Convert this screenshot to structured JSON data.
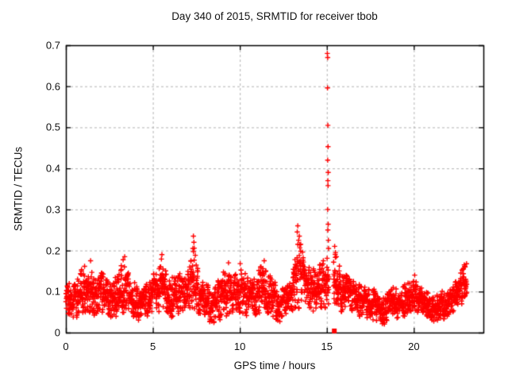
{
  "chart_data": {
    "type": "scatter",
    "title": "Day 340 of 2015, SRMTID for receiver tbob",
    "xlabel": "GPS time / hours",
    "ylabel": "SRMTID / TECUs",
    "xlim": [
      0,
      24
    ],
    "ylim": [
      0,
      0.7
    ],
    "xticks": {
      "values": [
        0,
        5,
        10,
        15,
        20
      ],
      "labels": [
        "0",
        "5",
        "10",
        "15",
        "20"
      ]
    },
    "yticks": {
      "values": [
        0,
        0.1,
        0.2,
        0.3,
        0.4,
        0.5,
        0.6,
        0.7
      ],
      "labels": [
        "0",
        "0.1",
        "0.2",
        "0.3",
        "0.4",
        "0.5",
        "0.6",
        "0.7"
      ]
    },
    "grid": true,
    "legend": "none",
    "marker": "plus",
    "marker_color": "#ff0000",
    "grid_color": "#b3b3b3",
    "border_color": "#000000",
    "sample_step_hours": 0.008333,
    "series_span_hours": [
      0.0,
      23.05
    ],
    "gaps": [
      [
        15.13,
        15.38
      ]
    ],
    "seed": 340,
    "envelope": [
      {
        "t": 0.0,
        "lo": 0.05,
        "hi": 0.13
      },
      {
        "t": 0.4,
        "lo": 0.03,
        "hi": 0.11
      },
      {
        "t": 0.7,
        "lo": 0.04,
        "hi": 0.14
      },
      {
        "t": 1.0,
        "lo": 0.05,
        "hi": 0.16
      },
      {
        "t": 1.4,
        "lo": 0.05,
        "hi": 0.17
      },
      {
        "t": 1.7,
        "lo": 0.04,
        "hi": 0.13
      },
      {
        "t": 2.1,
        "lo": 0.05,
        "hi": 0.16
      },
      {
        "t": 2.5,
        "lo": 0.03,
        "hi": 0.12
      },
      {
        "t": 2.9,
        "lo": 0.04,
        "hi": 0.14
      },
      {
        "t": 3.3,
        "lo": 0.05,
        "hi": 0.18
      },
      {
        "t": 3.7,
        "lo": 0.04,
        "hi": 0.14
      },
      {
        "t": 4.1,
        "lo": 0.03,
        "hi": 0.11
      },
      {
        "t": 4.4,
        "lo": 0.02,
        "hi": 0.1
      },
      {
        "t": 4.8,
        "lo": 0.04,
        "hi": 0.13
      },
      {
        "t": 5.2,
        "lo": 0.05,
        "hi": 0.15
      },
      {
        "t": 5.5,
        "lo": 0.05,
        "hi": 0.18
      },
      {
        "t": 5.9,
        "lo": 0.03,
        "hi": 0.13
      },
      {
        "t": 6.3,
        "lo": 0.04,
        "hi": 0.14
      },
      {
        "t": 6.7,
        "lo": 0.05,
        "hi": 0.15
      },
      {
        "t": 7.1,
        "lo": 0.05,
        "hi": 0.16
      },
      {
        "t": 7.4,
        "lo": 0.05,
        "hi": 0.21
      },
      {
        "t": 7.7,
        "lo": 0.04,
        "hi": 0.14
      },
      {
        "t": 8.1,
        "lo": 0.03,
        "hi": 0.12
      },
      {
        "t": 8.4,
        "lo": 0.015,
        "hi": 0.1
      },
      {
        "t": 8.8,
        "lo": 0.03,
        "hi": 0.13
      },
      {
        "t": 9.2,
        "lo": 0.04,
        "hi": 0.16
      },
      {
        "t": 9.6,
        "lo": 0.04,
        "hi": 0.13
      },
      {
        "t": 10.0,
        "lo": 0.05,
        "hi": 0.16
      },
      {
        "t": 10.4,
        "lo": 0.04,
        "hi": 0.14
      },
      {
        "t": 10.8,
        "lo": 0.04,
        "hi": 0.13
      },
      {
        "t": 11.2,
        "lo": 0.05,
        "hi": 0.16
      },
      {
        "t": 11.5,
        "lo": 0.04,
        "hi": 0.15
      },
      {
        "t": 11.9,
        "lo": 0.04,
        "hi": 0.13
      },
      {
        "t": 12.3,
        "lo": 0.025,
        "hi": 0.11
      },
      {
        "t": 12.7,
        "lo": 0.04,
        "hi": 0.12
      },
      {
        "t": 13.1,
        "lo": 0.05,
        "hi": 0.16
      },
      {
        "t": 13.4,
        "lo": 0.06,
        "hi": 0.24
      },
      {
        "t": 13.7,
        "lo": 0.05,
        "hi": 0.19
      },
      {
        "t": 14.1,
        "lo": 0.05,
        "hi": 0.17
      },
      {
        "t": 14.5,
        "lo": 0.05,
        "hi": 0.16
      },
      {
        "t": 14.9,
        "lo": 0.06,
        "hi": 0.18
      },
      {
        "t": 15.1,
        "lo": 0.07,
        "hi": 0.2
      },
      {
        "t": 15.5,
        "lo": 0.06,
        "hi": 0.19
      },
      {
        "t": 15.9,
        "lo": 0.05,
        "hi": 0.15
      },
      {
        "t": 16.3,
        "lo": 0.05,
        "hi": 0.13
      },
      {
        "t": 16.7,
        "lo": 0.04,
        "hi": 0.12
      },
      {
        "t": 17.1,
        "lo": 0.04,
        "hi": 0.12
      },
      {
        "t": 17.5,
        "lo": 0.02,
        "hi": 0.1
      },
      {
        "t": 17.9,
        "lo": 0.03,
        "hi": 0.11
      },
      {
        "t": 18.4,
        "lo": 0.015,
        "hi": 0.09
      },
      {
        "t": 18.8,
        "lo": 0.03,
        "hi": 0.11
      },
      {
        "t": 19.2,
        "lo": 0.04,
        "hi": 0.11
      },
      {
        "t": 19.6,
        "lo": 0.04,
        "hi": 0.12
      },
      {
        "t": 20.0,
        "lo": 0.05,
        "hi": 0.13
      },
      {
        "t": 20.4,
        "lo": 0.04,
        "hi": 0.11
      },
      {
        "t": 20.8,
        "lo": 0.03,
        "hi": 0.1
      },
      {
        "t": 21.2,
        "lo": 0.025,
        "hi": 0.09
      },
      {
        "t": 21.6,
        "lo": 0.03,
        "hi": 0.1
      },
      {
        "t": 22.0,
        "lo": 0.04,
        "hi": 0.11
      },
      {
        "t": 22.4,
        "lo": 0.05,
        "hi": 0.13
      },
      {
        "t": 22.7,
        "lo": 0.06,
        "hi": 0.15
      },
      {
        "t": 23.05,
        "lo": 0.08,
        "hi": 0.17
      }
    ],
    "outliers": [
      [
        1.42,
        0.175
      ],
      [
        3.38,
        0.185
      ],
      [
        5.52,
        0.19
      ],
      [
        7.3,
        0.205
      ],
      [
        7.33,
        0.235
      ],
      [
        7.36,
        0.22
      ],
      [
        9.35,
        0.17
      ],
      [
        10.02,
        0.168
      ],
      [
        11.4,
        0.175
      ],
      [
        13.3,
        0.245
      ],
      [
        13.33,
        0.26
      ],
      [
        13.38,
        0.225
      ],
      [
        13.42,
        0.235
      ],
      [
        13.5,
        0.215
      ],
      [
        15.03,
        0.68
      ],
      [
        15.05,
        0.67
      ],
      [
        15.04,
        0.596
      ],
      [
        15.06,
        0.505
      ],
      [
        15.07,
        0.453
      ],
      [
        15.05,
        0.42
      ],
      [
        15.08,
        0.39
      ],
      [
        15.06,
        0.37
      ],
      [
        15.07,
        0.358
      ],
      [
        15.05,
        0.3
      ],
      [
        15.08,
        0.264
      ],
      [
        15.06,
        0.25
      ],
      [
        15.09,
        0.225
      ],
      [
        15.1,
        0.205
      ],
      [
        15.45,
        0.21
      ],
      [
        15.5,
        0.195
      ],
      [
        15.55,
        0.185
      ],
      [
        20.05,
        0.14
      ],
      [
        22.9,
        0.165
      ],
      [
        22.95,
        0.16
      ]
    ],
    "square_point": [
      15.43,
      0.004
    ]
  }
}
